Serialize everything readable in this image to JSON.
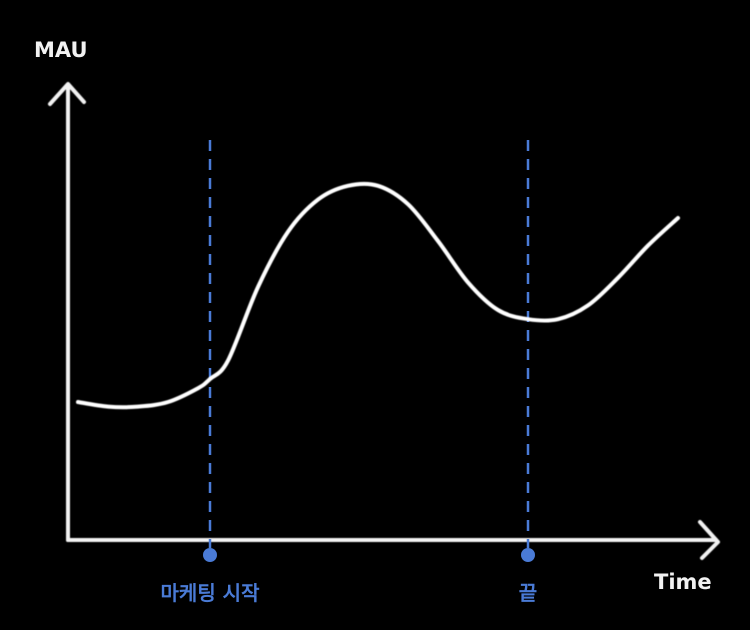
{
  "chart_data": {
    "type": "line",
    "ylabel": "MAU",
    "xlabel": "Time",
    "xlim": [
      0,
      100
    ],
    "ylim": [
      0,
      100
    ],
    "grid": false,
    "series": [
      {
        "x": [
          0,
          5,
          10,
          15,
          20,
          22,
          25,
          30,
          35,
          40,
          45,
          50,
          55,
          60,
          65,
          70,
          75,
          80,
          85,
          90,
          95,
          100
        ],
        "values": [
          30,
          29,
          29,
          30,
          33,
          35,
          39,
          55,
          67,
          74,
          77,
          77,
          73,
          65,
          56,
          50,
          48,
          48,
          51,
          57,
          64,
          70
        ]
      }
    ],
    "markers": [
      {
        "x": 22,
        "label": "마케팅 시작"
      },
      {
        "x": 75,
        "label": "끝"
      }
    ]
  },
  "colors": {
    "background": "#000000",
    "axis": "#f2f2f2",
    "curve": "#ffffff",
    "marker": "#4a7bd6"
  }
}
